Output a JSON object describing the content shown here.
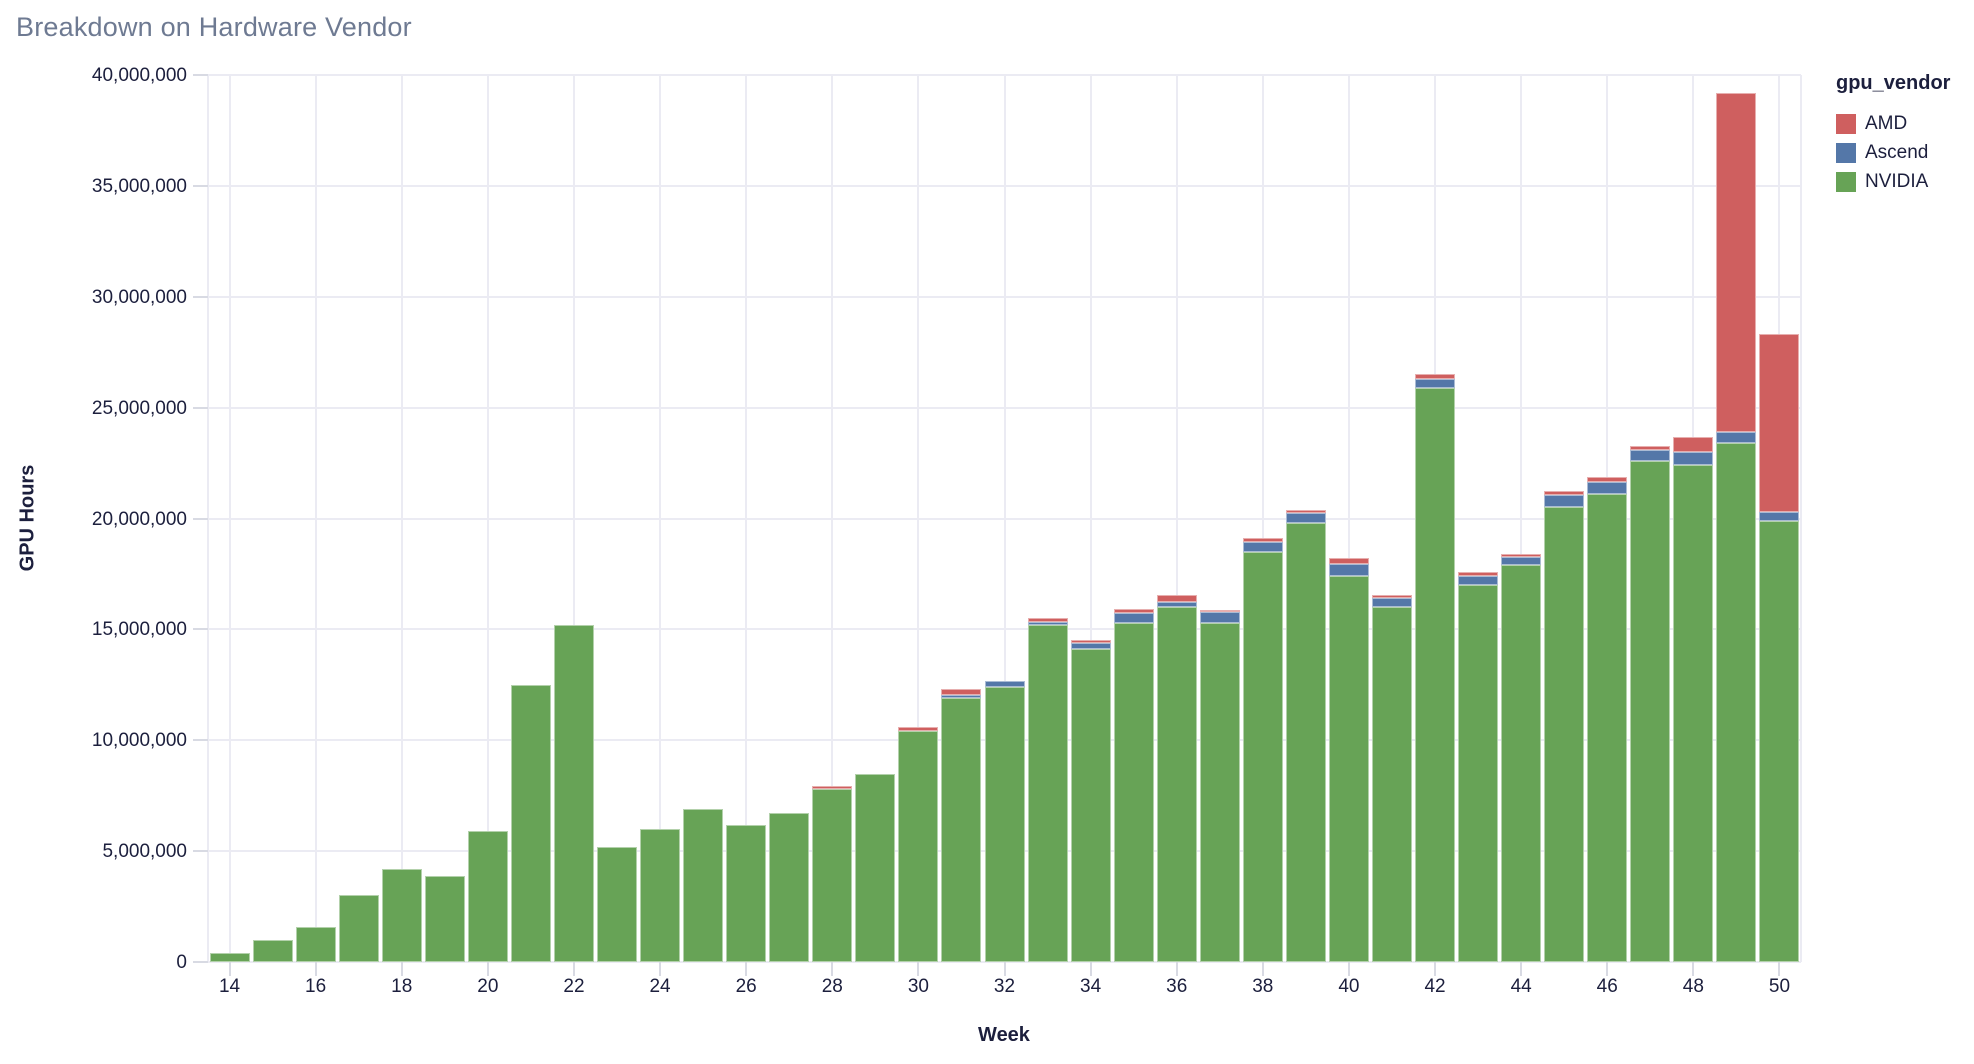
{
  "title": "Breakdown on Hardware Vendor",
  "colors": {
    "title_text": "#6e7a92",
    "axis_text": "#1c1f3d",
    "gridline": "#ebebf3",
    "tick": "#d8dae3",
    "background": "#ffffff"
  },
  "chart_data": {
    "type": "bar",
    "stacked": true,
    "title": "Breakdown on Hardware Vendor",
    "xlabel": "Week",
    "ylabel": "GPU Hours",
    "legend_title": "gpu_vendor",
    "legend_position": "right",
    "grid": true,
    "ylim": [
      0,
      40000000
    ],
    "x": [
      14,
      15,
      16,
      17,
      18,
      19,
      20,
      21,
      22,
      23,
      24,
      25,
      26,
      27,
      28,
      29,
      30,
      31,
      32,
      33,
      34,
      35,
      36,
      37,
      38,
      39,
      40,
      41,
      42,
      43,
      44,
      45,
      46,
      47,
      48,
      49,
      50
    ],
    "x_ticks": [
      14,
      16,
      18,
      20,
      22,
      24,
      26,
      28,
      30,
      32,
      34,
      36,
      38,
      40,
      42,
      44,
      46,
      48,
      50
    ],
    "y_ticks": [
      {
        "value": 0,
        "label": "0"
      },
      {
        "value": 5000000,
        "label": "5,000,000"
      },
      {
        "value": 10000000,
        "label": "10,000,000"
      },
      {
        "value": 15000000,
        "label": "15,000,000"
      },
      {
        "value": 20000000,
        "label": "20,000,000"
      },
      {
        "value": 25000000,
        "label": "25,000,000"
      },
      {
        "value": 30000000,
        "label": "30,000,000"
      },
      {
        "value": 35000000,
        "label": "35,000,000"
      },
      {
        "value": 40000000,
        "label": "40,000,000"
      }
    ],
    "stack_order": [
      "NVIDIA",
      "Ascend",
      "AMD"
    ],
    "series": [
      {
        "name": "AMD",
        "color": "#cf5f5f",
        "values": [
          0,
          0,
          0,
          0,
          0,
          0,
          0,
          0,
          0,
          0,
          0,
          0,
          0,
          0,
          150000,
          0,
          200000,
          280000,
          0,
          170000,
          100000,
          220000,
          320000,
          100000,
          150000,
          150000,
          260000,
          150000,
          200000,
          150000,
          150000,
          180000,
          200000,
          180000,
          680000,
          15300000,
          8000000
        ]
      },
      {
        "name": "Ascend",
        "color": "#5477a8",
        "values": [
          0,
          0,
          0,
          0,
          0,
          0,
          0,
          0,
          0,
          0,
          0,
          0,
          0,
          0,
          0,
          0,
          0,
          120000,
          260000,
          130000,
          300000,
          420000,
          220000,
          480000,
          450000,
          450000,
          550000,
          400000,
          400000,
          420000,
          370000,
          570000,
          550000,
          500000,
          600000,
          500000,
          400000
        ]
      },
      {
        "name": "NVIDIA",
        "color": "#67a356",
        "values": [
          400000,
          1000000,
          1600000,
          3000000,
          4200000,
          3900000,
          5900000,
          12500000,
          15200000,
          5200000,
          6000000,
          6900000,
          6200000,
          6700000,
          7800000,
          8500000,
          10400000,
          11900000,
          12400000,
          15200000,
          14100000,
          15300000,
          16000000,
          15300000,
          18500000,
          19800000,
          17400000,
          16000000,
          25900000,
          17000000,
          17900000,
          20500000,
          21100000,
          22600000,
          22400000,
          23400000,
          19900000
        ]
      }
    ]
  }
}
